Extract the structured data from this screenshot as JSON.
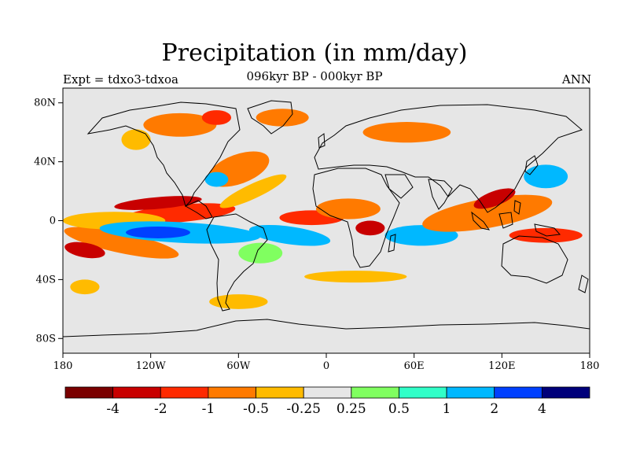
{
  "header": {
    "title": "Precipitation (in mm/day)",
    "subtitle": "096kyr BP - 000kyr BP",
    "left_label": "Expt = tdxo3-tdxoa",
    "right_label": "ANN"
  },
  "map": {
    "projection": "cylindrical-equidistant",
    "lon_range": [
      -180,
      180
    ],
    "lat_range": [
      -90,
      90
    ],
    "background_color": "#e6e6e6",
    "lat_ticks": [
      {
        "lat": 80,
        "label": "80N"
      },
      {
        "lat": 40,
        "label": "40N"
      },
      {
        "lat": 0,
        "label": "0"
      },
      {
        "lat": -40,
        "label": "40S"
      },
      {
        "lat": -80,
        "label": "80S"
      }
    ],
    "lon_ticks": [
      {
        "lon": -180,
        "label": "180"
      },
      {
        "lon": -120,
        "label": "120W"
      },
      {
        "lon": -60,
        "label": "60W"
      },
      {
        "lon": 0,
        "label": "0"
      },
      {
        "lon": 60,
        "label": "60E"
      },
      {
        "lon": 120,
        "label": "120E"
      },
      {
        "lon": 180,
        "label": "180"
      }
    ]
  },
  "colorbar": {
    "colors": [
      "#7a0000",
      "#c80000",
      "#ff2a00",
      "#ff7a00",
      "#ffbb00",
      "#e6e6e6",
      "#80ff60",
      "#30ffc8",
      "#00b8ff",
      "#0040ff",
      "#00007a"
    ],
    "labels": [
      "-4",
      "-2",
      "-1",
      "-0.5",
      "-0.25",
      "0.25",
      "0.5",
      "1",
      "2",
      "4"
    ]
  },
  "field_regions": [
    {
      "lon": -100,
      "lat": 5,
      "rx": 38,
      "ry": 6,
      "cat": 2,
      "rot": -5
    },
    {
      "lon": -140,
      "lat": -15,
      "rx": 40,
      "ry": 7,
      "cat": 3,
      "rot": 12
    },
    {
      "lon": -165,
      "lat": -20,
      "rx": 14,
      "ry": 5,
      "cat": 1,
      "rot": 10
    },
    {
      "lon": -145,
      "lat": 0,
      "rx": 35,
      "ry": 6,
      "cat": 4,
      "rot": 0
    },
    {
      "lon": -115,
      "lat": 12,
      "rx": 30,
      "ry": 4,
      "cat": 1,
      "rot": -5
    },
    {
      "lon": -100,
      "lat": -8,
      "rx": 55,
      "ry": 7,
      "cat": 8,
      "rot": 3
    },
    {
      "lon": -115,
      "lat": -8,
      "rx": 22,
      "ry": 4,
      "cat": 9,
      "rot": 0
    },
    {
      "lon": -60,
      "lat": 35,
      "rx": 22,
      "ry": 10,
      "cat": 3,
      "rot": -20
    },
    {
      "lon": -75,
      "lat": 28,
      "rx": 8,
      "ry": 5,
      "cat": 8,
      "rot": 0
    },
    {
      "lon": -50,
      "lat": 20,
      "rx": 25,
      "ry": 5,
      "cat": 4,
      "rot": -25
    },
    {
      "lon": -100,
      "lat": 65,
      "rx": 25,
      "ry": 8,
      "cat": 3,
      "rot": 0
    },
    {
      "lon": -130,
      "lat": 55,
      "rx": 10,
      "ry": 7,
      "cat": 4,
      "rot": 0
    },
    {
      "lon": -75,
      "lat": 70,
      "rx": 10,
      "ry": 5,
      "cat": 2,
      "rot": 0
    },
    {
      "lon": -30,
      "lat": 70,
      "rx": 18,
      "ry": 6,
      "cat": 3,
      "rot": 0
    },
    {
      "lon": -25,
      "lat": -10,
      "rx": 28,
      "ry": 6,
      "cat": 8,
      "rot": 8
    },
    {
      "lon": -10,
      "lat": 2,
      "rx": 22,
      "ry": 5,
      "cat": 2,
      "rot": 0
    },
    {
      "lon": -45,
      "lat": -22,
      "rx": 15,
      "ry": 7,
      "cat": 6,
      "rot": 0
    },
    {
      "lon": 15,
      "lat": 8,
      "rx": 22,
      "ry": 7,
      "cat": 3,
      "rot": 0
    },
    {
      "lon": 30,
      "lat": -5,
      "rx": 10,
      "ry": 5,
      "cat": 1,
      "rot": 0
    },
    {
      "lon": 65,
      "lat": -10,
      "rx": 25,
      "ry": 7,
      "cat": 8,
      "rot": 0
    },
    {
      "lon": 55,
      "lat": 60,
      "rx": 30,
      "ry": 7,
      "cat": 3,
      "rot": 0
    },
    {
      "lon": 110,
      "lat": 5,
      "rx": 45,
      "ry": 10,
      "cat": 3,
      "rot": -10
    },
    {
      "lon": 115,
      "lat": 15,
      "rx": 15,
      "ry": 5,
      "cat": 1,
      "rot": -20
    },
    {
      "lon": 150,
      "lat": -10,
      "rx": 25,
      "ry": 5,
      "cat": 2,
      "rot": 0
    },
    {
      "lon": 150,
      "lat": 30,
      "rx": 15,
      "ry": 8,
      "cat": 8,
      "rot": 0
    },
    {
      "lon": -60,
      "lat": -55,
      "rx": 20,
      "ry": 5,
      "cat": 4,
      "rot": 0
    },
    {
      "lon": 20,
      "lat": -38,
      "rx": 35,
      "ry": 4,
      "cat": 4,
      "rot": 0
    },
    {
      "lon": -165,
      "lat": -45,
      "rx": 10,
      "ry": 5,
      "cat": 4,
      "rot": 0
    }
  ]
}
